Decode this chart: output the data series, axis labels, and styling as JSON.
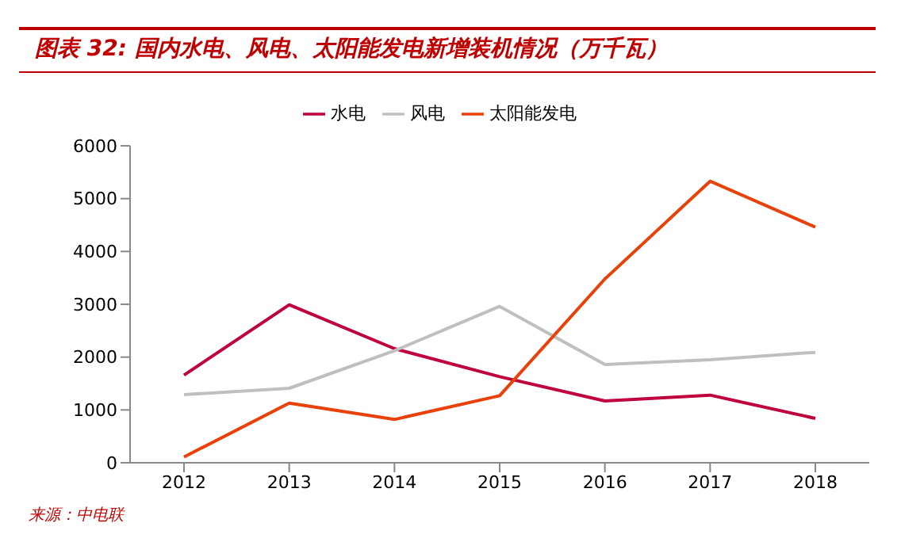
{
  "chart_data": {
    "type": "line",
    "title": "图表 32: 国内水电、风电、太阳能发电新增装机情况（万千瓦）",
    "categories": [
      "2012",
      "2013",
      "2014",
      "2015",
      "2016",
      "2017",
      "2018"
    ],
    "series": [
      {
        "name": "水电",
        "color": "#c0003c",
        "values": [
          1660,
          2990,
          2160,
          1630,
          1170,
          1280,
          840
        ]
      },
      {
        "name": "风电",
        "color": "#bfbfbf",
        "values": [
          1290,
          1410,
          2120,
          2960,
          1860,
          1950,
          2090
        ]
      },
      {
        "name": "太阳能发电",
        "color": "#e8420a",
        "values": [
          110,
          1130,
          820,
          1270,
          3480,
          5330,
          4460
        ]
      }
    ],
    "ylim": [
      0,
      6000
    ],
    "yticks": [
      0,
      1000,
      2000,
      3000,
      4000,
      5000,
      6000
    ],
    "grid": false,
    "legend": "top",
    "marker": "none",
    "line_style": "solid",
    "annotations": [
      "来源：中电联"
    ]
  }
}
